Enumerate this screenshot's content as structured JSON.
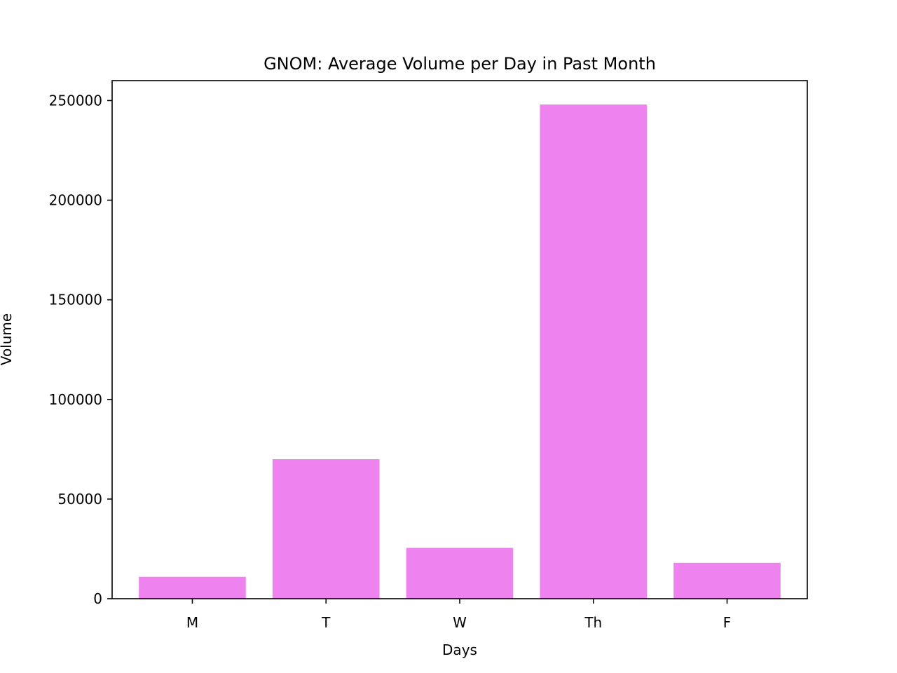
{
  "chart_data": {
    "type": "bar",
    "title": "GNOM: Average Volume per Day in Past Month",
    "xlabel": "Days",
    "ylabel": "Volume",
    "categories": [
      "M",
      "T",
      "W",
      "Th",
      "F"
    ],
    "values": [
      11000,
      70000,
      25500,
      248000,
      18000
    ],
    "ylim": [
      0,
      260000
    ],
    "yticks": [
      0,
      50000,
      100000,
      150000,
      200000,
      250000
    ],
    "ytick_labels": [
      "0",
      "50000",
      "100000",
      "150000",
      "200000",
      "250000"
    ],
    "grid": false,
    "bar_color": "#ee82ee"
  }
}
